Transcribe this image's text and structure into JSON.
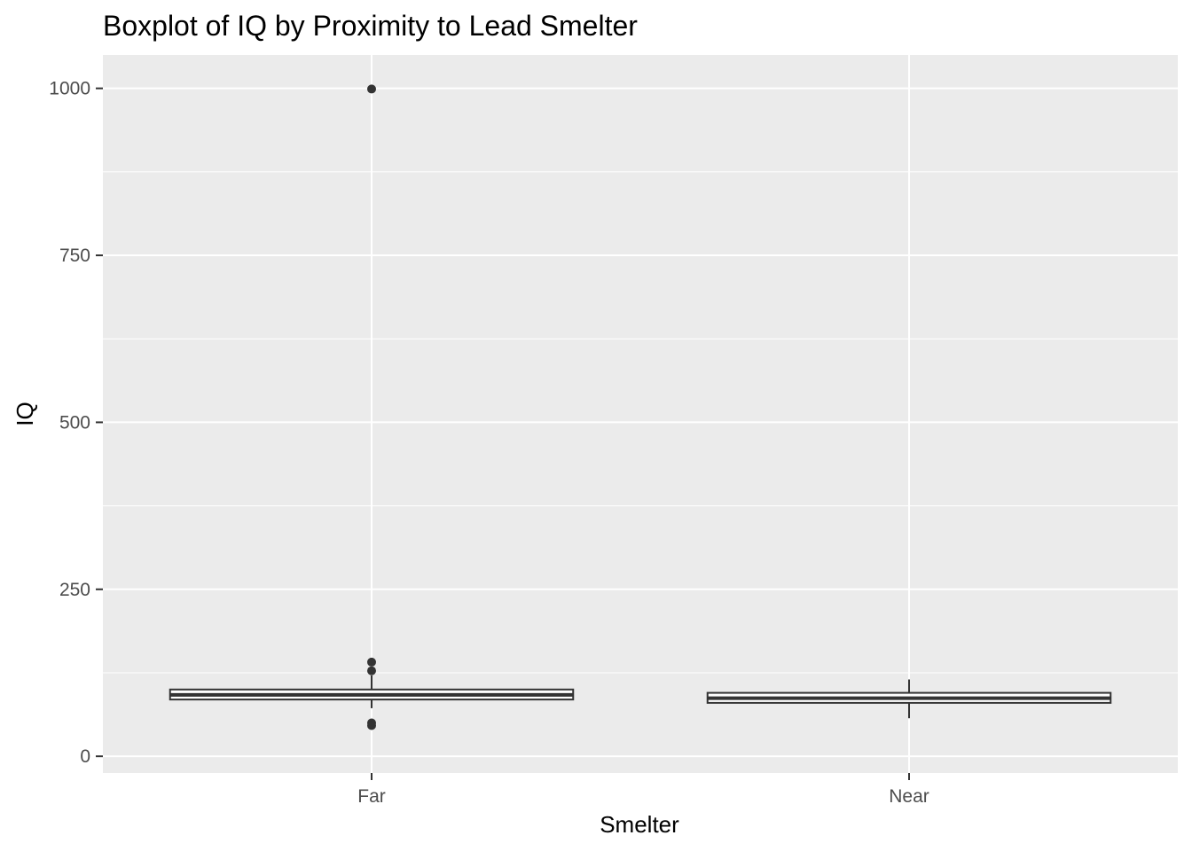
{
  "chart_data": {
    "type": "boxplot",
    "title": "Boxplot of IQ by Proximity to Lead Smelter",
    "xlabel": "Smelter",
    "ylabel": "IQ",
    "categories": [
      "Far",
      "Near"
    ],
    "ylim": [
      -25,
      1050
    ],
    "yticks": [
      0,
      250,
      500,
      750,
      1000
    ],
    "grid": true,
    "legend": "none",
    "boxes": [
      {
        "category": "Far",
        "whisker_low": 72,
        "q1": 85,
        "median": 92,
        "q3": 100,
        "whisker_high": 121,
        "outliers": [
          999,
          141,
          128,
          50,
          46
        ]
      },
      {
        "category": "Near",
        "whisker_low": 57,
        "q1": 80,
        "median": 87,
        "q3": 95,
        "whisker_high": 115,
        "outliers": []
      }
    ],
    "colors": {
      "panel_background": "#ebebeb",
      "grid_line": "#ffffff",
      "box_line": "#333333",
      "box_fill": "#ffffff",
      "outlier": "#333333",
      "tick_text": "#4d4d4d"
    }
  }
}
